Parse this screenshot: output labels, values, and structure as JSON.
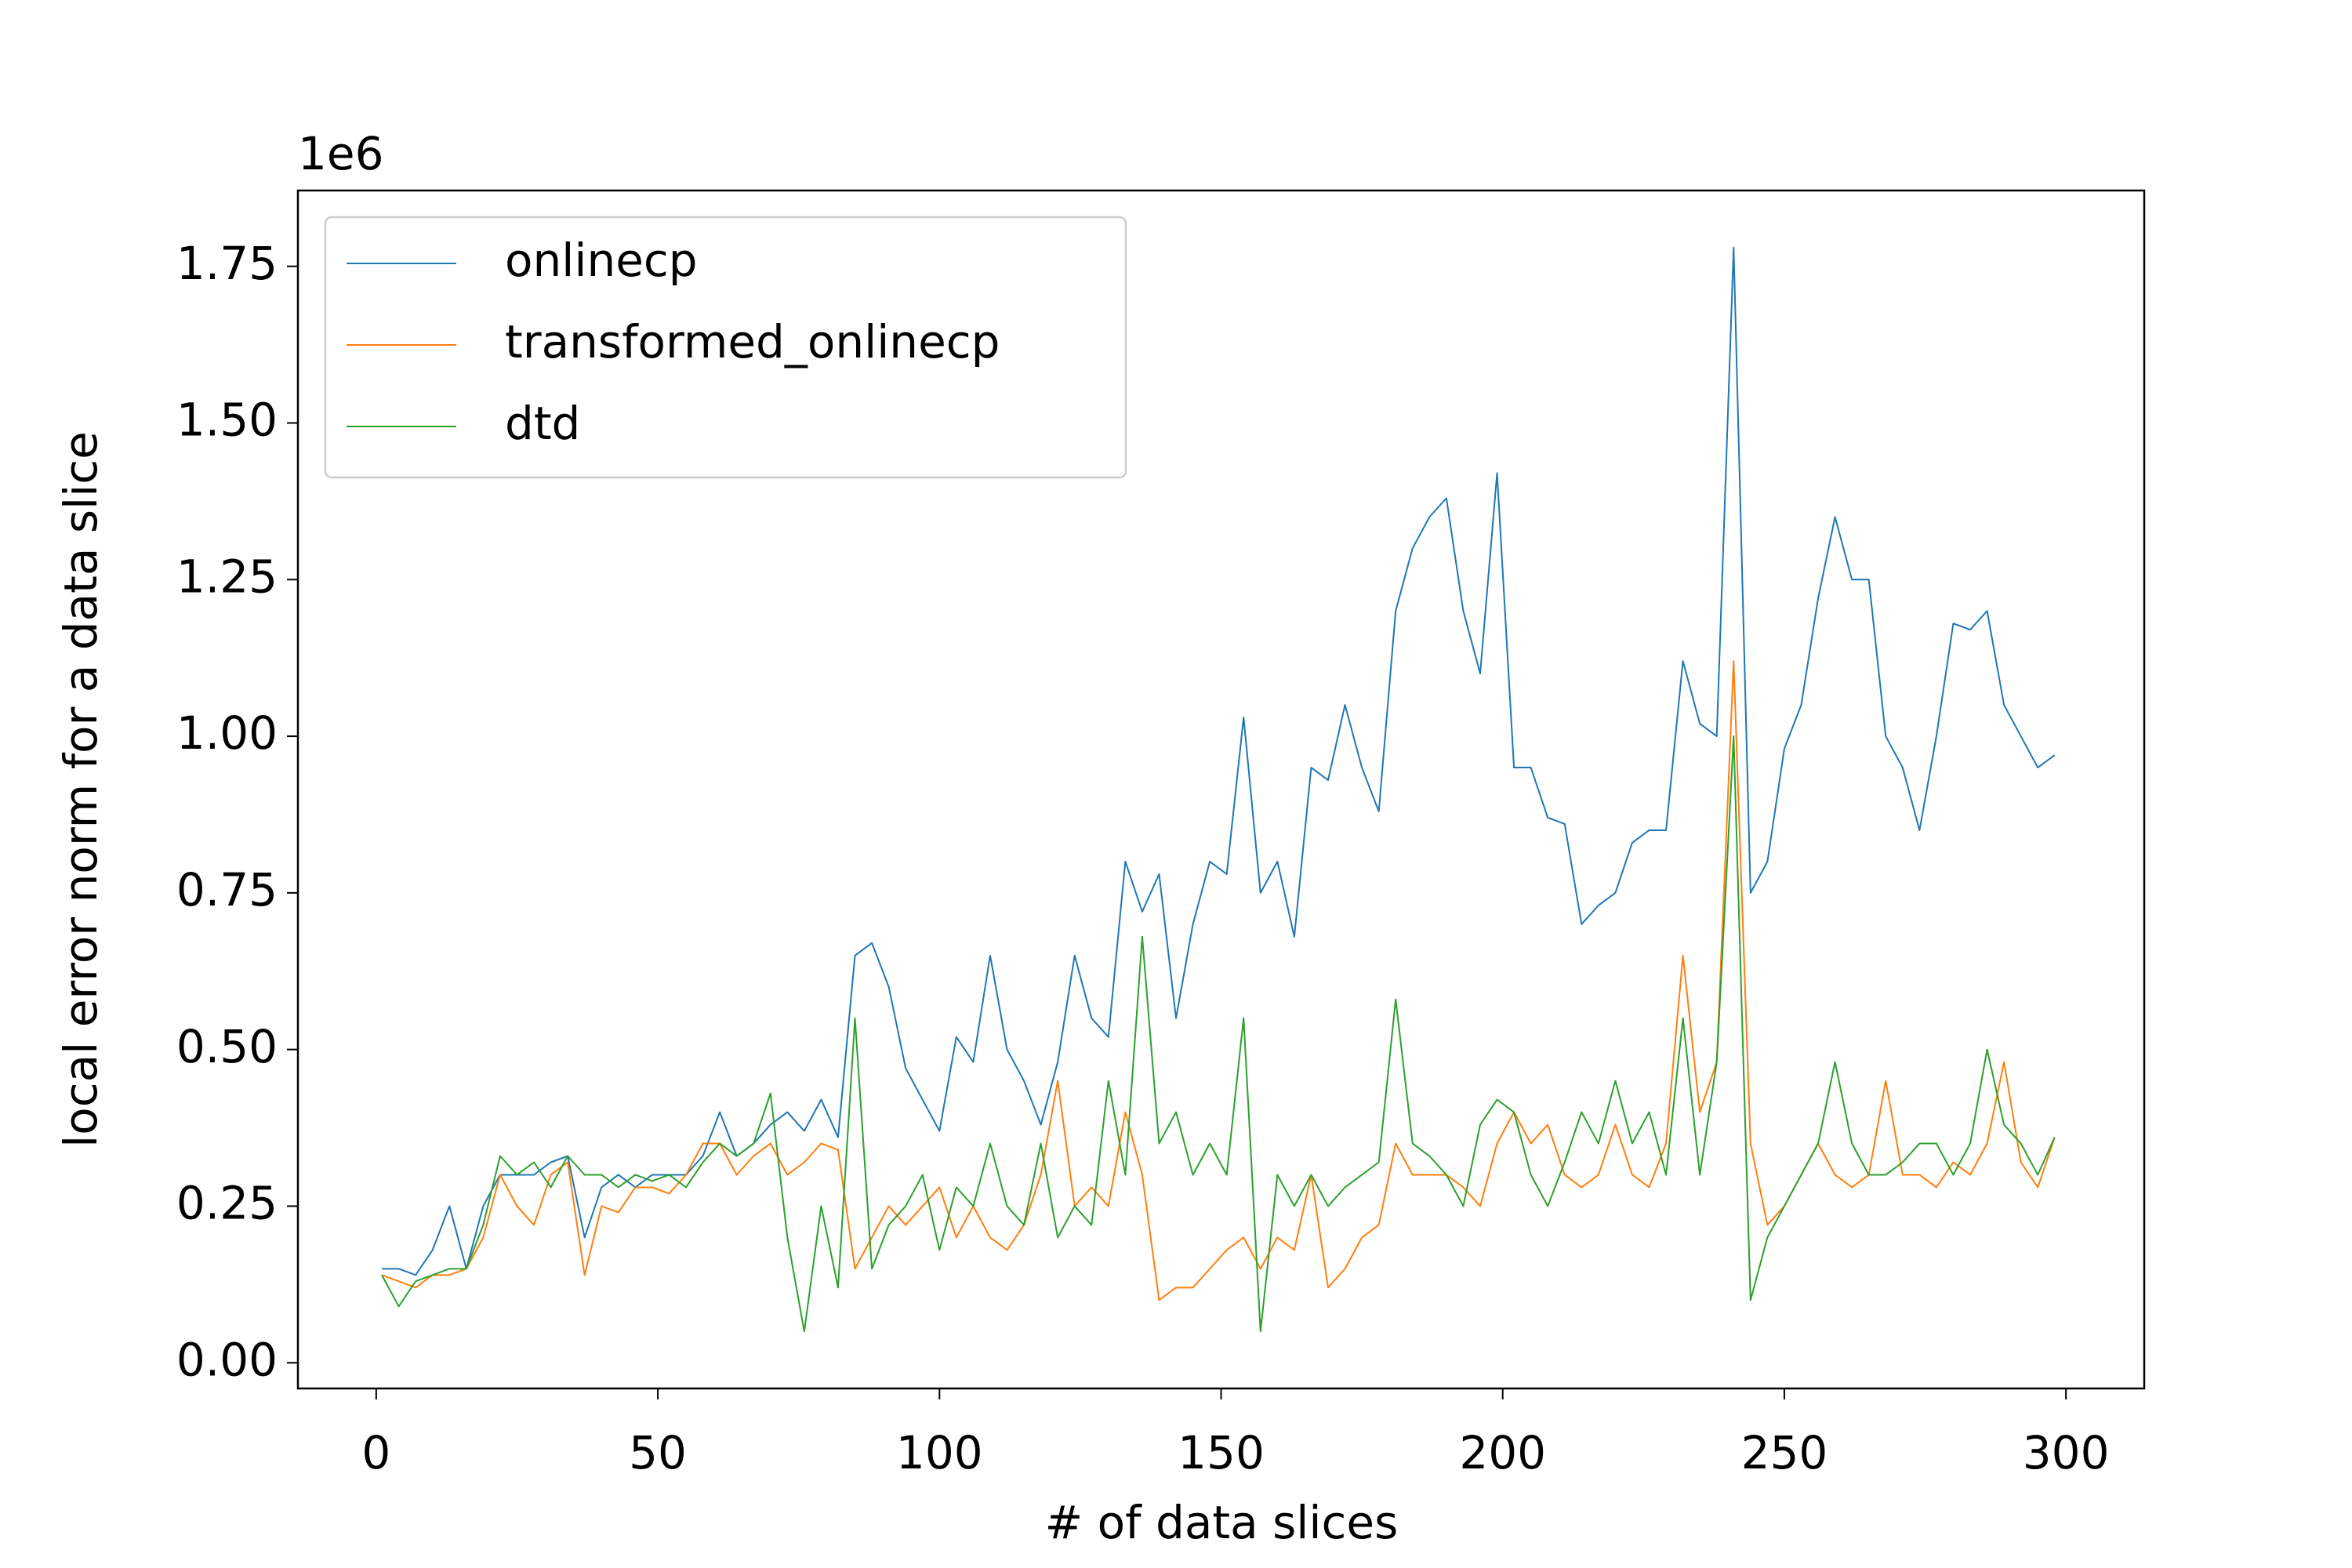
{
  "chart_data": {
    "type": "line",
    "xlabel": "# of data slices",
    "ylabel": "local error norm for a data slice",
    "y_offset_label": "1e6",
    "x": [
      1,
      4,
      7,
      10,
      13,
      16,
      19,
      22,
      25,
      28,
      31,
      34,
      37,
      40,
      43,
      46,
      49,
      52,
      55,
      58,
      61,
      64,
      67,
      70,
      73,
      76,
      79,
      82,
      85,
      88,
      91,
      94,
      97,
      100,
      103,
      106,
      109,
      112,
      115,
      118,
      121,
      124,
      127,
      130,
      133,
      136,
      139,
      142,
      145,
      148,
      151,
      154,
      157,
      160,
      163,
      166,
      169,
      172,
      175,
      178,
      181,
      184,
      187,
      190,
      193,
      196,
      199,
      202,
      205,
      208,
      211,
      214,
      217,
      220,
      223,
      226,
      229,
      232,
      235,
      238,
      241,
      244,
      247,
      250,
      253,
      256,
      259,
      262,
      265,
      268,
      271,
      274,
      277,
      280,
      283,
      286,
      289,
      292,
      295,
      298
    ],
    "series": [
      {
        "name": "onlinecp",
        "color": "#1f77b4",
        "values": [
          0.15,
          0.15,
          0.14,
          0.18,
          0.25,
          0.15,
          0.25,
          0.3,
          0.3,
          0.3,
          0.32,
          0.33,
          0.2,
          0.28,
          0.3,
          0.28,
          0.3,
          0.3,
          0.3,
          0.33,
          0.4,
          0.33,
          0.35,
          0.38,
          0.4,
          0.37,
          0.42,
          0.36,
          0.65,
          0.67,
          0.6,
          0.47,
          0.42,
          0.37,
          0.52,
          0.48,
          0.65,
          0.5,
          0.45,
          0.38,
          0.48,
          0.65,
          0.55,
          0.52,
          0.8,
          0.72,
          0.78,
          0.55,
          0.7,
          0.8,
          0.78,
          1.03,
          0.75,
          0.8,
          0.68,
          0.95,
          0.93,
          1.05,
          0.95,
          0.88,
          1.2,
          1.3,
          1.35,
          1.38,
          1.2,
          1.1,
          1.42,
          0.95,
          0.95,
          0.87,
          0.86,
          0.7,
          0.73,
          0.75,
          0.83,
          0.85,
          0.85,
          1.12,
          1.02,
          1.0,
          1.78,
          0.75,
          0.8,
          0.98,
          1.05,
          1.22,
          1.35,
          1.25,
          1.25,
          1.0,
          0.95,
          0.85,
          1.0,
          1.18,
          1.17,
          1.2,
          1.05,
          1.0,
          0.95,
          0.97
        ]
      },
      {
        "name": "transformed_onlinecp",
        "color": "#ff7f0e",
        "values": [
          0.14,
          0.13,
          0.12,
          0.14,
          0.14,
          0.15,
          0.2,
          0.3,
          0.25,
          0.22,
          0.3,
          0.32,
          0.14,
          0.25,
          0.24,
          0.28,
          0.28,
          0.27,
          0.3,
          0.35,
          0.35,
          0.3,
          0.33,
          0.35,
          0.3,
          0.32,
          0.35,
          0.34,
          0.15,
          0.2,
          0.25,
          0.22,
          0.25,
          0.28,
          0.2,
          0.25,
          0.2,
          0.18,
          0.22,
          0.3,
          0.45,
          0.25,
          0.28,
          0.25,
          0.4,
          0.3,
          0.1,
          0.12,
          0.12,
          0.15,
          0.18,
          0.2,
          0.15,
          0.2,
          0.18,
          0.3,
          0.12,
          0.15,
          0.2,
          0.22,
          0.35,
          0.3,
          0.3,
          0.3,
          0.28,
          0.25,
          0.35,
          0.4,
          0.35,
          0.38,
          0.3,
          0.28,
          0.3,
          0.38,
          0.3,
          0.28,
          0.35,
          0.65,
          0.4,
          0.48,
          1.12,
          0.35,
          0.22,
          0.25,
          0.3,
          0.35,
          0.3,
          0.28,
          0.3,
          0.45,
          0.3,
          0.3,
          0.28,
          0.32,
          0.3,
          0.35,
          0.48,
          0.32,
          0.28,
          0.36
        ]
      },
      {
        "name": "dtd",
        "color": "#2ca02c",
        "values": [
          0.14,
          0.09,
          0.13,
          0.14,
          0.15,
          0.15,
          0.22,
          0.33,
          0.3,
          0.32,
          0.28,
          0.33,
          0.3,
          0.3,
          0.28,
          0.3,
          0.29,
          0.3,
          0.28,
          0.32,
          0.35,
          0.33,
          0.35,
          0.43,
          0.2,
          0.05,
          0.25,
          0.12,
          0.55,
          0.15,
          0.22,
          0.25,
          0.3,
          0.18,
          0.28,
          0.25,
          0.35,
          0.25,
          0.22,
          0.35,
          0.2,
          0.25,
          0.22,
          0.45,
          0.3,
          0.68,
          0.35,
          0.4,
          0.3,
          0.35,
          0.3,
          0.55,
          0.05,
          0.3,
          0.25,
          0.3,
          0.25,
          0.28,
          0.3,
          0.32,
          0.58,
          0.35,
          0.33,
          0.3,
          0.25,
          0.38,
          0.42,
          0.4,
          0.3,
          0.25,
          0.32,
          0.4,
          0.35,
          0.45,
          0.35,
          0.4,
          0.3,
          0.55,
          0.3,
          0.48,
          1.0,
          0.1,
          0.2,
          0.25,
          0.3,
          0.35,
          0.48,
          0.35,
          0.3,
          0.3,
          0.32,
          0.35,
          0.35,
          0.3,
          0.35,
          0.5,
          0.38,
          0.35,
          0.3,
          0.36
        ]
      }
    ],
    "xlim": [
      -13.9,
      313.9
    ],
    "ylim": [
      -0.041,
      1.871
    ],
    "xticks": [
      0,
      50,
      100,
      150,
      200,
      250,
      300
    ],
    "yticks": [
      {
        "value": 0,
        "label": "0.00"
      },
      0.25,
      {
        "value": 0.5,
        "label": "0.50"
      },
      0.75,
      {
        "value": 1,
        "label": "1.00"
      },
      1.25,
      {
        "value": 1.5,
        "label": "1.50"
      },
      1.75
    ],
    "grid": false,
    "legend": "upper left"
  }
}
